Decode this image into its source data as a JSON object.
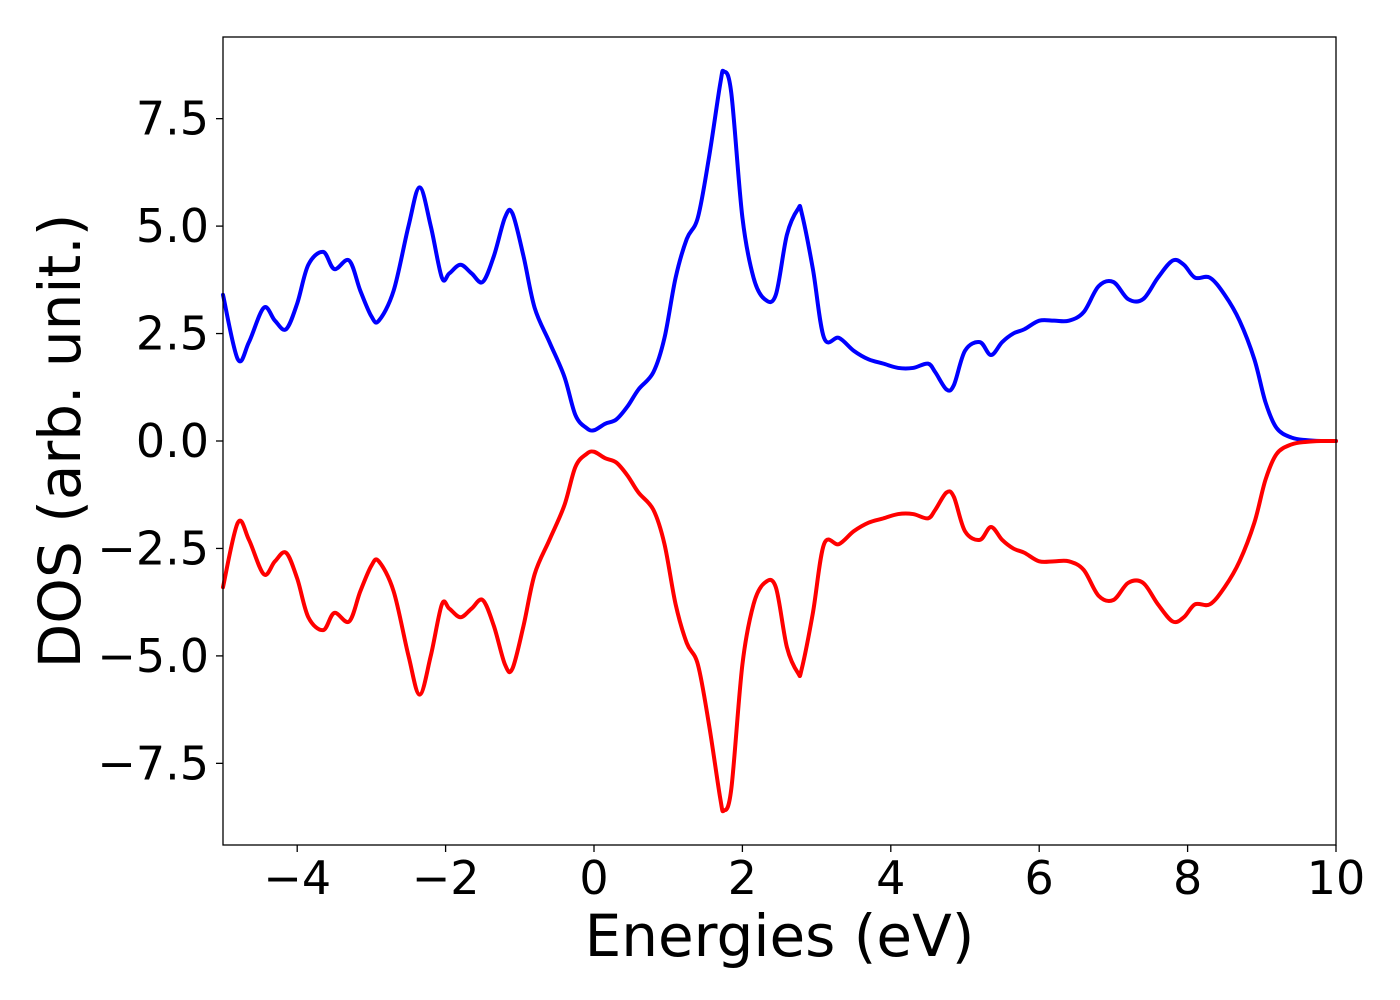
{
  "chart_data": {
    "type": "line",
    "title": "",
    "xlabel": "Energies (eV)",
    "ylabel": "DOS (arb. unit.)",
    "xlim": [
      -5,
      10
    ],
    "ylim": [
      -9.4,
      9.4
    ],
    "grid": false,
    "xticks": [
      -4,
      -2,
      0,
      2,
      4,
      6,
      8,
      10
    ],
    "xtick_labels": [
      "−4",
      "−2",
      "0",
      "2",
      "4",
      "6",
      "8",
      "10"
    ],
    "yticks": [
      7.5,
      5.0,
      2.5,
      0.0,
      -2.5,
      -5.0,
      -7.5
    ],
    "ytick_labels": [
      "7.5",
      "5.0",
      "2.5",
      "0.0",
      "−2.5",
      "−5.0",
      "−7.5"
    ],
    "series": [
      {
        "color": "#0000ff",
        "x": [
          -5.0,
          -4.8,
          -4.65,
          -4.45,
          -4.3,
          -4.15,
          -4.0,
          -3.85,
          -3.65,
          -3.5,
          -3.3,
          -3.15,
          -3.0,
          -2.9,
          -2.7,
          -2.5,
          -2.35,
          -2.2,
          -2.05,
          -1.95,
          -1.8,
          -1.65,
          -1.5,
          -1.35,
          -1.2,
          -1.1,
          -0.95,
          -0.8,
          -0.6,
          -0.4,
          -0.25,
          -0.1,
          0.0,
          0.15,
          0.3,
          0.45,
          0.6,
          0.8,
          0.95,
          1.1,
          1.25,
          1.4,
          1.55,
          1.7,
          1.75,
          1.85,
          2.0,
          2.15,
          2.3,
          2.45,
          2.6,
          2.75,
          2.8,
          2.95,
          3.1,
          3.3,
          3.5,
          3.7,
          3.9,
          4.1,
          4.3,
          4.5,
          4.6,
          4.75,
          4.85,
          5.0,
          5.2,
          5.35,
          5.5,
          5.65,
          5.8,
          6.0,
          6.2,
          6.4,
          6.6,
          6.8,
          7.0,
          7.2,
          7.4,
          7.6,
          7.8,
          7.95,
          8.1,
          8.3,
          8.5,
          8.7,
          8.9,
          9.05,
          9.2,
          9.4,
          9.6,
          9.8,
          10.0
        ],
        "values": [
          3.4,
          1.9,
          2.3,
          3.1,
          2.8,
          2.6,
          3.2,
          4.1,
          4.4,
          4.0,
          4.2,
          3.5,
          2.9,
          2.8,
          3.5,
          5.0,
          5.9,
          5.0,
          3.8,
          3.9,
          4.1,
          3.9,
          3.7,
          4.3,
          5.2,
          5.3,
          4.3,
          3.1,
          2.3,
          1.5,
          0.6,
          0.3,
          0.25,
          0.4,
          0.5,
          0.8,
          1.2,
          1.6,
          2.4,
          3.8,
          4.7,
          5.2,
          6.6,
          8.3,
          8.6,
          8.1,
          5.2,
          3.8,
          3.3,
          3.4,
          4.8,
          5.4,
          5.3,
          4.0,
          2.4,
          2.4,
          2.1,
          1.9,
          1.8,
          1.7,
          1.7,
          1.8,
          1.6,
          1.2,
          1.3,
          2.1,
          2.3,
          2.0,
          2.3,
          2.5,
          2.6,
          2.8,
          2.8,
          2.8,
          3.0,
          3.6,
          3.7,
          3.3,
          3.3,
          3.8,
          4.2,
          4.1,
          3.8,
          3.8,
          3.4,
          2.8,
          1.9,
          0.9,
          0.3,
          0.08,
          0.02,
          0.0,
          0.0
        ]
      },
      {
        "color": "#ff0000",
        "x": [
          -5.0,
          -4.8,
          -4.65,
          -4.45,
          -4.3,
          -4.15,
          -4.0,
          -3.85,
          -3.65,
          -3.5,
          -3.3,
          -3.15,
          -3.0,
          -2.9,
          -2.7,
          -2.5,
          -2.35,
          -2.2,
          -2.05,
          -1.95,
          -1.8,
          -1.65,
          -1.5,
          -1.35,
          -1.2,
          -1.1,
          -0.95,
          -0.8,
          -0.6,
          -0.4,
          -0.25,
          -0.1,
          0.0,
          0.15,
          0.3,
          0.45,
          0.6,
          0.8,
          0.95,
          1.1,
          1.25,
          1.4,
          1.55,
          1.7,
          1.75,
          1.85,
          2.0,
          2.15,
          2.3,
          2.45,
          2.6,
          2.75,
          2.8,
          2.95,
          3.1,
          3.3,
          3.5,
          3.7,
          3.9,
          4.1,
          4.3,
          4.5,
          4.6,
          4.75,
          4.85,
          5.0,
          5.2,
          5.35,
          5.5,
          5.65,
          5.8,
          6.0,
          6.2,
          6.4,
          6.6,
          6.8,
          7.0,
          7.2,
          7.4,
          7.6,
          7.8,
          7.95,
          8.1,
          8.3,
          8.5,
          8.7,
          8.9,
          9.05,
          9.2,
          9.4,
          9.6,
          9.8,
          10.0
        ],
        "values": [
          -3.4,
          -1.9,
          -2.3,
          -3.1,
          -2.8,
          -2.6,
          -3.2,
          -4.1,
          -4.4,
          -4.0,
          -4.2,
          -3.5,
          -2.9,
          -2.8,
          -3.5,
          -5.0,
          -5.9,
          -5.0,
          -3.8,
          -3.9,
          -4.1,
          -3.9,
          -3.7,
          -4.3,
          -5.2,
          -5.3,
          -4.3,
          -3.1,
          -2.3,
          -1.5,
          -0.6,
          -0.3,
          -0.25,
          -0.4,
          -0.5,
          -0.8,
          -1.2,
          -1.6,
          -2.4,
          -3.8,
          -4.7,
          -5.2,
          -6.6,
          -8.3,
          -8.6,
          -8.1,
          -5.2,
          -3.8,
          -3.3,
          -3.4,
          -4.8,
          -5.4,
          -5.3,
          -4.0,
          -2.4,
          -2.4,
          -2.1,
          -1.9,
          -1.8,
          -1.7,
          -1.7,
          -1.8,
          -1.6,
          -1.2,
          -1.3,
          -2.1,
          -2.3,
          -2.0,
          -2.3,
          -2.5,
          -2.6,
          -2.8,
          -2.8,
          -2.8,
          -3.0,
          -3.6,
          -3.7,
          -3.3,
          -3.3,
          -3.8,
          -4.2,
          -4.1,
          -3.8,
          -3.8,
          -3.4,
          -2.8,
          -1.9,
          -0.9,
          -0.3,
          -0.08,
          -0.02,
          0.0,
          0.0
        ]
      }
    ]
  }
}
